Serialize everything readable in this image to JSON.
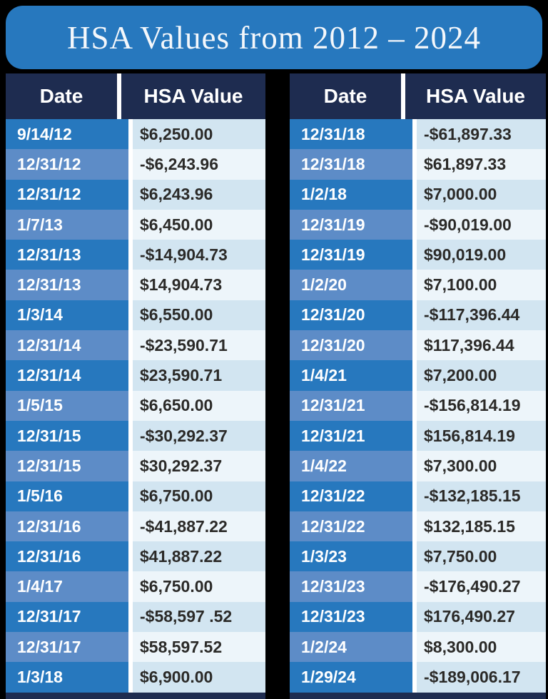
{
  "title": "HSA Values from 2012 – 2024",
  "colors": {
    "background": "#000000",
    "banner_blue": "#2778BE",
    "header_navy": "#1E2C50",
    "row_blue_strong": "#2778BE",
    "row_blue_muted": "#5D8CC7",
    "value_bg_blue": "#D2E5F1",
    "value_bg_light": "#EDF5FA",
    "value_text": "#2B2A28",
    "separator_white": "#FFFFFF"
  },
  "chart_data": {
    "type": "table",
    "title": "HSA Values from 2012 – 2024",
    "columns": [
      "Date",
      "HSA Value"
    ],
    "tables": [
      {
        "position": "left",
        "headers": [
          "Date",
          "HSA Value"
        ],
        "rows": [
          {
            "date": "9/14/12",
            "value": "$6,250.00"
          },
          {
            "date": "12/31/12",
            "value": "-$6,243.96"
          },
          {
            "date": "12/31/12",
            "value": "$6,243.96"
          },
          {
            "date": "1/7/13",
            "value": "$6,450.00"
          },
          {
            "date": "12/31/13",
            "value": "-$14,904.73"
          },
          {
            "date": "12/31/13",
            "value": "$14,904.73"
          },
          {
            "date": "1/3/14",
            "value": "$6,550.00"
          },
          {
            "date": "12/31/14",
            "value": "-$23,590.71"
          },
          {
            "date": "12/31/14",
            "value": "$23,590.71"
          },
          {
            "date": "1/5/15",
            "value": "$6,650.00"
          },
          {
            "date": "12/31/15",
            "value": "-$30,292.37"
          },
          {
            "date": "12/31/15",
            "value": "$30,292.37"
          },
          {
            "date": "1/5/16",
            "value": "$6,750.00"
          },
          {
            "date": "12/31/16",
            "value": "-$41,887.22"
          },
          {
            "date": "12/31/16",
            "value": "$41,887.22"
          },
          {
            "date": "1/4/17",
            "value": "$6,750.00"
          },
          {
            "date": "12/31/17",
            "value": "-$58,597 .52"
          },
          {
            "date": "12/31/17",
            "value": "$58,597.52"
          },
          {
            "date": "1/3/18",
            "value": "$6,900.00"
          }
        ]
      },
      {
        "position": "right",
        "headers": [
          "Date",
          "HSA Value"
        ],
        "rows": [
          {
            "date": "12/31/18",
            "value": "-$61,897.33"
          },
          {
            "date": "12/31/18",
            "value": "$61,897.33"
          },
          {
            "date": "1/2/18",
            "value": "$7,000.00"
          },
          {
            "date": "12/31/19",
            "value": "-$90,019.00"
          },
          {
            "date": "12/31/19",
            "value": "$90,019.00"
          },
          {
            "date": "1/2/20",
            "value": "$7,100.00"
          },
          {
            "date": "12/31/20",
            "value": "-$117,396.44"
          },
          {
            "date": "12/31/20",
            "value": "$117,396.44"
          },
          {
            "date": "1/4/21",
            "value": "$7,200.00"
          },
          {
            "date": "12/31/21",
            "value": "-$156,814.19"
          },
          {
            "date": "12/31/21",
            "value": "$156,814.19"
          },
          {
            "date": "1/4/22",
            "value": "$7,300.00"
          },
          {
            "date": "12/31/22",
            "value": "-$132,185.15"
          },
          {
            "date": "12/31/22",
            "value": "$132,185.15"
          },
          {
            "date": "1/3/23",
            "value": "$7,750.00"
          },
          {
            "date": "12/31/23",
            "value": "-$176,490.27"
          },
          {
            "date": "12/31/23",
            "value": "$176,490.27"
          },
          {
            "date": "1/2/24",
            "value": "$8,300.00"
          },
          {
            "date": "1/29/24",
            "value": "-$189,006.17"
          }
        ]
      }
    ]
  }
}
